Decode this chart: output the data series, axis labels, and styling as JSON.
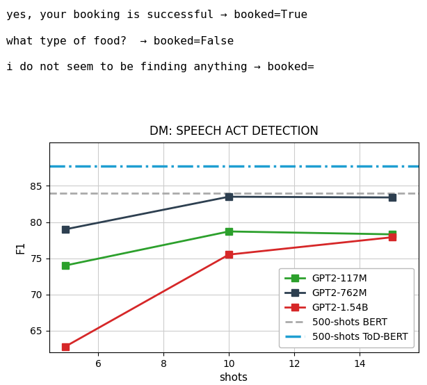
{
  "title": "DM: SPEECH ACT DETECTION",
  "xlabel": "shots",
  "ylabel": "F1",
  "header_lines": [
    "yes, your booking is successful → booked=True",
    "what type of food?  → booked=False",
    "i do not seem to be finding anything → booked="
  ],
  "gpt2_117m": {
    "x": [
      5,
      10,
      15
    ],
    "y": [
      74.0,
      78.7,
      78.3
    ],
    "color": "#2ca02c",
    "label": "GPT2-117M",
    "marker": "s"
  },
  "gpt2_762m": {
    "x": [
      5,
      10,
      15
    ],
    "y": [
      79.0,
      83.5,
      83.4
    ],
    "color": "#2d3f50",
    "label": "GPT2-762M",
    "marker": "s"
  },
  "gpt2_154b": {
    "x": [
      5,
      10,
      15
    ],
    "y": [
      62.8,
      75.5,
      77.9
    ],
    "color": "#d62728",
    "label": "GPT2-1.54B",
    "marker": "s"
  },
  "bert_500": {
    "y": 84.0,
    "color": "#aaaaaa",
    "label": "500-shots BERT",
    "linestyle": "--"
  },
  "tod_bert_500": {
    "y": 87.7,
    "color": "#1f9ed1",
    "label": "500-shots ToD-BERT",
    "linestyle": "-."
  },
  "xlim": [
    4.5,
    15.8
  ],
  "ylim": [
    62,
    91
  ],
  "yticks": [
    65,
    70,
    75,
    80,
    85
  ],
  "xticks": [
    6,
    8,
    10,
    12,
    14
  ],
  "grid": true,
  "legend_loc": "lower right",
  "header_fontsize": 11.5
}
